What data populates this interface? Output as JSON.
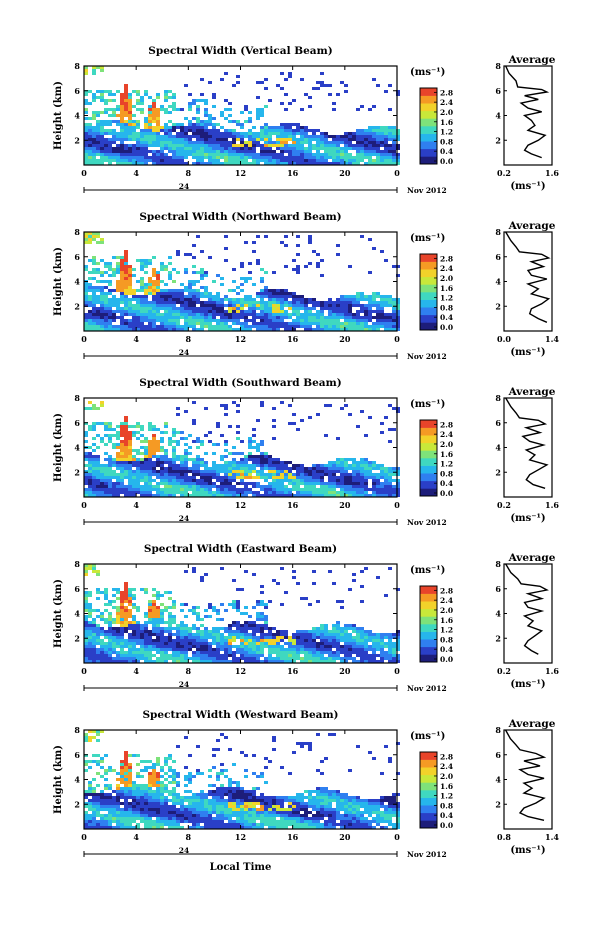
{
  "chart_data": [
    {
      "type": "heatmap",
      "title": "Spectral Width (Vertical Beam)",
      "ylabel": "Height (km)",
      "ylim": [
        0,
        8
      ],
      "yticks": [
        "2",
        "4",
        "6",
        "8"
      ],
      "xticks": [
        "0",
        "4",
        "8",
        "12",
        "16",
        "20",
        "0"
      ],
      "xlim": [
        0,
        24
      ],
      "date_label": "Nov 2012",
      "colorbar": {
        "unit": "(ms⁻¹)",
        "ticks": [
          "0.0",
          "0.4",
          "0.8",
          "1.2",
          "1.6",
          "2.0",
          "2.4",
          "2.8"
        ]
      },
      "average": {
        "title": "Average",
        "xlabel": "(ms⁻¹)",
        "xticks": [
          "0.2",
          "1.6"
        ],
        "xlim": [
          0.2,
          1.6
        ],
        "yticks": [
          "2",
          "4",
          "6",
          "8"
        ],
        "profile": [
          [
            0.25,
            8.0
          ],
          [
            0.35,
            7.4
          ],
          [
            0.55,
            6.8
          ],
          [
            0.6,
            6.3
          ],
          [
            1.3,
            6.1
          ],
          [
            1.45,
            5.9
          ],
          [
            0.8,
            5.6
          ],
          [
            1.2,
            5.3
          ],
          [
            0.7,
            5.0
          ],
          [
            0.9,
            4.6
          ],
          [
            1.3,
            4.3
          ],
          [
            0.8,
            4.0
          ],
          [
            1.0,
            3.6
          ],
          [
            1.1,
            3.2
          ],
          [
            0.9,
            2.8
          ],
          [
            1.4,
            2.4
          ],
          [
            1.2,
            2.0
          ],
          [
            0.9,
            1.6
          ],
          [
            0.8,
            1.2
          ],
          [
            1.0,
            0.9
          ],
          [
            1.3,
            0.6
          ]
        ]
      }
    },
    {
      "type": "heatmap",
      "title": "Spectral Width (Northward Beam)",
      "ylabel": "Height (km)",
      "ylim": [
        0,
        8
      ],
      "yticks": [
        "2",
        "4",
        "6",
        "8"
      ],
      "xticks": [
        "0",
        "4",
        "8",
        "12",
        "16",
        "20",
        "0"
      ],
      "xlim": [
        0,
        24
      ],
      "date_label": "Nov 2012",
      "colorbar": {
        "unit": "(ms⁻¹)",
        "ticks": [
          "0.0",
          "0.4",
          "0.8",
          "1.2",
          "1.6",
          "2.0",
          "2.4",
          "2.8"
        ]
      },
      "average": {
        "title": "Average",
        "xlabel": "(ms⁻¹)",
        "xticks": [
          "0.0",
          "1.4"
        ],
        "xlim": [
          0.0,
          1.4
        ],
        "yticks": [
          "2",
          "4",
          "6",
          "8"
        ],
        "profile": [
          [
            0.05,
            8.0
          ],
          [
            0.2,
            7.3
          ],
          [
            0.35,
            6.8
          ],
          [
            0.45,
            6.4
          ],
          [
            1.1,
            6.2
          ],
          [
            1.3,
            5.9
          ],
          [
            0.8,
            5.6
          ],
          [
            1.15,
            5.2
          ],
          [
            0.7,
            4.9
          ],
          [
            0.8,
            4.5
          ],
          [
            1.25,
            4.2
          ],
          [
            0.7,
            3.8
          ],
          [
            1.0,
            3.4
          ],
          [
            0.8,
            3.0
          ],
          [
            1.3,
            2.6
          ],
          [
            1.1,
            2.2
          ],
          [
            0.8,
            1.8
          ],
          [
            0.75,
            1.4
          ],
          [
            1.0,
            1.0
          ],
          [
            1.25,
            0.7
          ]
        ]
      }
    },
    {
      "type": "heatmap",
      "title": "Spectral Width (Southward Beam)",
      "ylabel": "Height (km)",
      "ylim": [
        0,
        8
      ],
      "yticks": [
        "2",
        "4",
        "6",
        "8"
      ],
      "xticks": [
        "0",
        "4",
        "8",
        "12",
        "16",
        "20",
        "0"
      ],
      "xlim": [
        0,
        24
      ],
      "date_label": "Nov 2012",
      "colorbar": {
        "unit": "(ms⁻¹)",
        "ticks": [
          "0.0",
          "0.4",
          "0.8",
          "1.2",
          "1.6",
          "2.0",
          "2.4",
          "2.8"
        ]
      },
      "average": {
        "title": "Average",
        "xlabel": "(ms⁻¹)",
        "xticks": [
          "0.2",
          "1.6"
        ],
        "xlim": [
          0.2,
          1.6
        ],
        "yticks": [
          "2",
          "4",
          "6",
          "8"
        ],
        "profile": [
          [
            0.25,
            8.0
          ],
          [
            0.4,
            7.3
          ],
          [
            0.55,
            6.8
          ],
          [
            0.65,
            6.4
          ],
          [
            1.2,
            6.2
          ],
          [
            1.4,
            5.9
          ],
          [
            0.85,
            5.6
          ],
          [
            1.25,
            5.2
          ],
          [
            0.75,
            4.9
          ],
          [
            0.95,
            4.5
          ],
          [
            1.35,
            4.2
          ],
          [
            0.85,
            3.8
          ],
          [
            1.1,
            3.4
          ],
          [
            0.95,
            3.0
          ],
          [
            1.45,
            2.6
          ],
          [
            1.2,
            2.2
          ],
          [
            0.95,
            1.8
          ],
          [
            0.85,
            1.4
          ],
          [
            1.05,
            1.0
          ],
          [
            1.4,
            0.7
          ]
        ]
      }
    },
    {
      "type": "heatmap",
      "title": "Spectral Width (Eastward Beam)",
      "ylabel": "Height (km)",
      "ylim": [
        0,
        8
      ],
      "yticks": [
        "2",
        "4",
        "6",
        "8"
      ],
      "xticks": [
        "0",
        "4",
        "8",
        "12",
        "16",
        "20",
        "0"
      ],
      "xlim": [
        0,
        24
      ],
      "date_label": "Nov 2012",
      "colorbar": {
        "unit": "(ms⁻¹)",
        "ticks": [
          "0.0",
          "0.4",
          "0.8",
          "1.2",
          "1.6",
          "2.0",
          "2.4",
          "2.8"
        ]
      },
      "average": {
        "title": "Average",
        "xlabel": "(ms⁻¹)",
        "xticks": [
          "0.2",
          "1.6"
        ],
        "xlim": [
          0.2,
          1.6
        ],
        "yticks": [
          "2",
          "4",
          "6",
          "8"
        ],
        "profile": [
          [
            0.25,
            8.0
          ],
          [
            0.4,
            7.3
          ],
          [
            0.6,
            6.8
          ],
          [
            0.7,
            6.4
          ],
          [
            1.25,
            6.2
          ],
          [
            1.45,
            5.9
          ],
          [
            0.9,
            5.6
          ],
          [
            1.3,
            5.2
          ],
          [
            0.8,
            4.9
          ],
          [
            0.9,
            4.5
          ],
          [
            1.3,
            4.2
          ],
          [
            0.8,
            3.8
          ],
          [
            1.05,
            3.4
          ],
          [
            0.9,
            3.0
          ],
          [
            1.3,
            2.6
          ],
          [
            1.1,
            2.2
          ],
          [
            0.9,
            1.8
          ],
          [
            0.8,
            1.4
          ],
          [
            1.0,
            1.0
          ],
          [
            1.2,
            0.7
          ]
        ]
      }
    },
    {
      "type": "heatmap",
      "title": "Spectral Width (Westward Beam)",
      "ylabel": "Height (km)",
      "ylim": [
        0,
        8
      ],
      "yticks": [
        "2",
        "4",
        "6",
        "8"
      ],
      "xticks": [
        "0",
        "4",
        "8",
        "12",
        "16",
        "20",
        "0"
      ],
      "xlim": [
        0,
        24
      ],
      "date_label": "Nov 2012",
      "xlabel": "Local Time",
      "colorbar": {
        "unit": "(ms⁻¹)",
        "ticks": [
          "0.0",
          "0.4",
          "0.8",
          "1.2",
          "1.6",
          "2.0",
          "2.4",
          "2.8"
        ]
      },
      "average": {
        "title": "Average",
        "xlabel": "(ms⁻¹)",
        "xticks": [
          "0.8",
          "1.4"
        ],
        "xlim": [
          0.8,
          1.4
        ],
        "yticks": [
          "2",
          "4",
          "6",
          "8"
        ],
        "profile": [
          [
            0.82,
            8.0
          ],
          [
            0.88,
            7.3
          ],
          [
            0.95,
            6.8
          ],
          [
            1.0,
            6.4
          ],
          [
            1.2,
            6.1
          ],
          [
            1.3,
            5.8
          ],
          [
            1.05,
            5.5
          ],
          [
            1.25,
            5.1
          ],
          [
            1.0,
            4.8
          ],
          [
            1.1,
            4.4
          ],
          [
            1.3,
            4.1
          ],
          [
            1.05,
            3.7
          ],
          [
            1.15,
            3.3
          ],
          [
            1.05,
            2.9
          ],
          [
            1.3,
            2.5
          ],
          [
            1.2,
            2.1
          ],
          [
            1.05,
            1.7
          ],
          [
            1.0,
            1.3
          ],
          [
            1.1,
            1.0
          ],
          [
            1.3,
            0.7
          ]
        ]
      }
    }
  ],
  "colormap": [
    "#1d1d7a",
    "#2a3fc7",
    "#2f7ff0",
    "#26b6ec",
    "#3fd8c0",
    "#7ee27a",
    "#c8e83a",
    "#f2d22a",
    "#f59a24",
    "#e8442a"
  ]
}
